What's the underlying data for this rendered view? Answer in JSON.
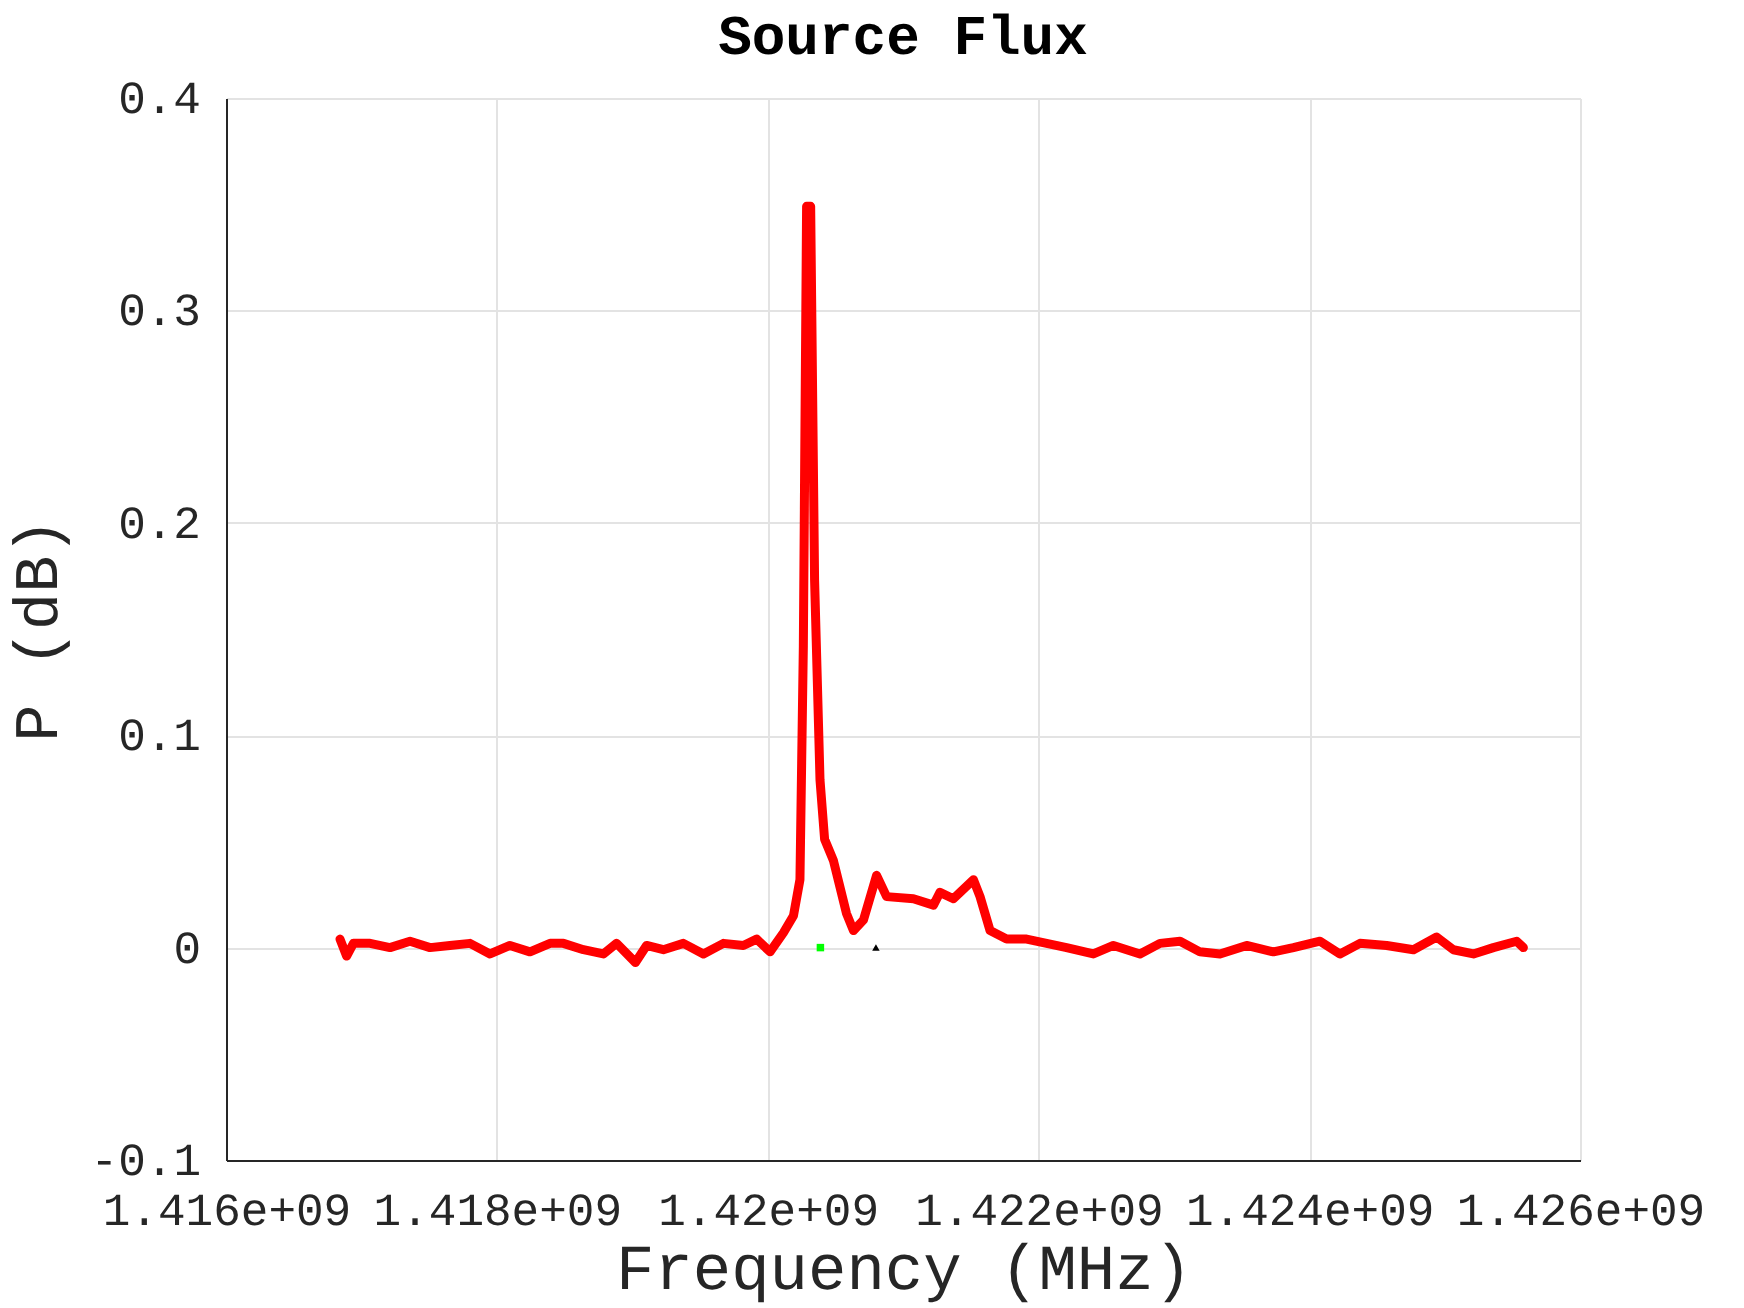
{
  "chart_data": {
    "type": "line",
    "title": "Source Flux",
    "xlabel": "Frequency (MHz)",
    "ylabel": "P (dB)",
    "xlim": [
      1416000000,
      1426000000
    ],
    "xticks": [
      {
        "value": 1416000000,
        "label": "1.416e+09"
      },
      {
        "value": 1418000000,
        "label": "1.418e+09"
      },
      {
        "value": 1420000000,
        "label": "1.42e+09"
      },
      {
        "value": 1422000000,
        "label": "1.422e+09"
      },
      {
        "value": 1424000000,
        "label": "1.424e+09"
      },
      {
        "value": 1426000000,
        "label": "1.426e+09"
      }
    ],
    "ylim": [
      -0.1,
      0.4
    ],
    "yticks": [
      -0.1,
      0,
      0.1,
      0.2,
      0.3,
      0.4
    ],
    "grid": true,
    "line_style": "solid",
    "series": [
      {
        "color": "#ff0000",
        "x": [
          1416842000,
          1416891000,
          1416941000,
          1417064000,
          1417211000,
          1417359000,
          1417507000,
          1417654000,
          1417802000,
          1417950000,
          1418097000,
          1418245000,
          1418393000,
          1418492000,
          1418640000,
          1418787000,
          1418885000,
          1419024000,
          1419106000,
          1419230000,
          1419378000,
          1419526000,
          1419674000,
          1419821000,
          1419919000,
          1420018000,
          1420117000,
          1420191000,
          1420239000,
          1420264000,
          1420288000,
          1420318000,
          1420347000,
          1420387000,
          1420421000,
          1420486000,
          1420583000,
          1420634000,
          1420708000,
          1420805000,
          1420879000,
          1421077000,
          1421225000,
          1421273000,
          1421372000,
          1421520000,
          1421569000,
          1421643000,
          1421765000,
          1421913000,
          1422061000,
          1422208000,
          1422406000,
          1422554000,
          1422750000,
          1422898000,
          1423046000,
          1423193000,
          1423341000,
          1423538000,
          1423736000,
          1423883000,
          1424080000,
          1424227000,
          1424375000,
          1424572000,
          1424770000,
          1424941000,
          1425065000,
          1425213000,
          1425360000,
          1425532000,
          1425582000
        ],
        "values": [
          0.004,
          -0.004,
          0.002,
          0.002,
          0,
          0.003,
          0,
          0.001,
          0.002,
          -0.003,
          0.001,
          -0.002,
          0.002,
          0.002,
          -0.001,
          -0.003,
          0.002,
          -0.007,
          0.001,
          -0.001,
          0.002,
          -0.003,
          0.002,
          0.001,
          0.004,
          -0.002,
          0.007,
          0.015,
          0.032,
          0.142,
          0.349,
          0.349,
          0.173,
          0.079,
          0.051,
          0.041,
          0.016,
          0.008,
          0.013,
          0.034,
          0.024,
          0.023,
          0.02,
          0.026,
          0.023,
          0.032,
          0.024,
          0.008,
          0.004,
          0.004,
          0.002,
          0,
          -0.003,
          0.001,
          -0.003,
          0.002,
          0.003,
          -0.002,
          -0.003,
          0.001,
          -0.002,
          0,
          0.003,
          -0.003,
          0.002,
          0.001,
          -0.001,
          0.005,
          -0.001,
          -0.003,
          0,
          0.003,
          0
        ]
      },
      {
        "type": "scatter",
        "marker": "square",
        "color": "#00ff00",
        "x": [
          1420390000
        ],
        "values": [
          0
        ]
      },
      {
        "type": "scatter",
        "marker": "triangle",
        "color": "#000000",
        "x": [
          1420800000
        ],
        "values": [
          0
        ]
      }
    ]
  }
}
